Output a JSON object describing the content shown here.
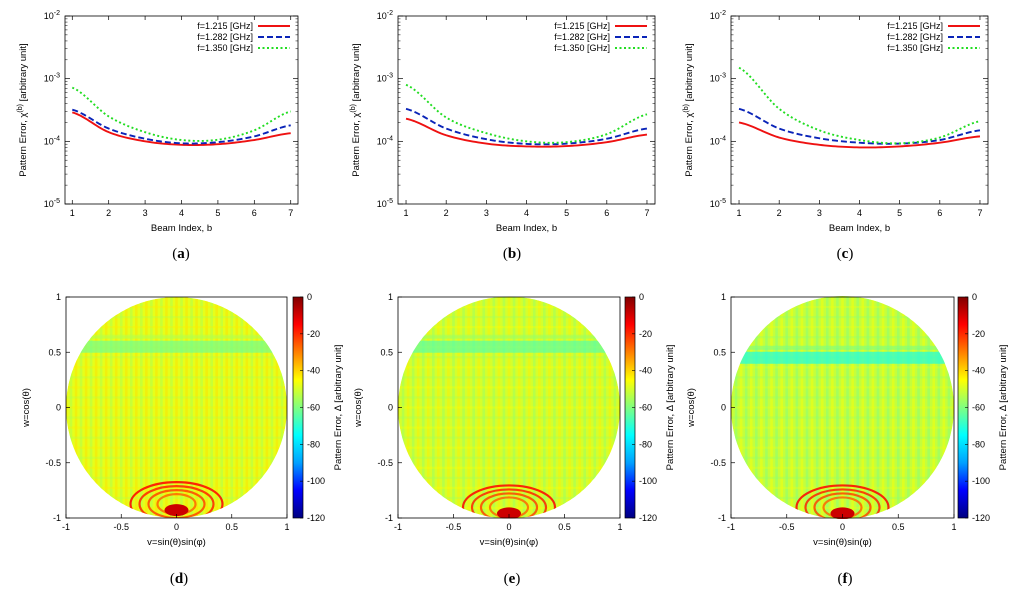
{
  "chart_data": [
    {
      "panel": "a",
      "caption": {
        "open": "(",
        "letter": "a",
        "close": ")"
      },
      "type": "line",
      "xlabel": "Beam Index, b",
      "ylabel_text": "Pattern Error, χ",
      "ylabel_sup": "(b)",
      "ylabel_unit": " [arbitrary unit]",
      "xlim": [
        0.8,
        7.2
      ],
      "ylim": [
        1e-05,
        0.01
      ],
      "yscale": "log",
      "xticks": [
        "1",
        "2",
        "3",
        "4",
        "5",
        "6",
        "7"
      ],
      "yticks": [
        {
          "base": "10",
          "exp": "-5"
        },
        {
          "base": "10",
          "exp": "-4"
        },
        {
          "base": "10",
          "exp": "-3"
        },
        {
          "base": "10",
          "exp": "-2"
        }
      ],
      "legend_position": "top-right",
      "x": [
        1,
        2,
        3,
        4,
        5,
        6,
        7
      ],
      "series": [
        {
          "name": "f=1.215 [GHz]",
          "color": "#ee1111",
          "style": "solid",
          "values": [
            0.00029,
            0.00014,
            0.0001,
            8.8e-05,
            9e-05,
            0.000105,
            0.000135
          ]
        },
        {
          "name": "f=1.282 [GHz]",
          "color": "#0a24b8",
          "style": "dashed",
          "values": [
            0.00032,
            0.00016,
            0.00011,
            9.3e-05,
            9.7e-05,
            0.00012,
            0.00018
          ]
        },
        {
          "name": "f=1.350 [GHz]",
          "color": "#22dd22",
          "style": "dotted",
          "values": [
            0.00072,
            0.00025,
            0.00014,
            0.000105,
            0.000106,
            0.00015,
            0.0003
          ]
        }
      ]
    },
    {
      "panel": "b",
      "caption": {
        "open": "(",
        "letter": "b",
        "close": ")"
      },
      "type": "line",
      "xlabel": "Beam Index, b",
      "ylabel_text": "Pattern Error, χ",
      "ylabel_sup": "(b)",
      "ylabel_unit": " [arbitrary unit]",
      "xlim": [
        0.8,
        7.2
      ],
      "ylim": [
        1e-05,
        0.01
      ],
      "yscale": "log",
      "xticks": [
        "1",
        "2",
        "3",
        "4",
        "5",
        "6",
        "7"
      ],
      "yticks": [
        {
          "base": "10",
          "exp": "-5"
        },
        {
          "base": "10",
          "exp": "-4"
        },
        {
          "base": "10",
          "exp": "-3"
        },
        {
          "base": "10",
          "exp": "-2"
        }
      ],
      "legend_position": "top-right",
      "x": [
        1,
        2,
        3,
        4,
        5,
        6,
        7
      ],
      "series": [
        {
          "name": "f=1.215 [GHz]",
          "color": "#ee1111",
          "style": "solid",
          "values": [
            0.00023,
            0.000125,
            9.2e-05,
            8.3e-05,
            8.4e-05,
            9.7e-05,
            0.000128
          ]
        },
        {
          "name": "f=1.282 [GHz]",
          "color": "#0a24b8",
          "style": "dashed",
          "values": [
            0.00033,
            0.00016,
            0.000108,
            9.1e-05,
            9.2e-05,
            0.00011,
            0.00016
          ]
        },
        {
          "name": "f=1.350 [GHz]",
          "color": "#22dd22",
          "style": "dotted",
          "values": [
            0.0008,
            0.00024,
            0.000135,
            0.0001,
            9.7e-05,
            0.00013,
            0.00027
          ]
        }
      ]
    },
    {
      "panel": "c",
      "caption": {
        "open": "(",
        "letter": "c",
        "close": ")"
      },
      "type": "line",
      "xlabel": "Beam Index, b",
      "ylabel_text": "Pattern Error, χ",
      "ylabel_sup": "(b)",
      "ylabel_unit": " [arbitrary unit]",
      "xlim": [
        0.8,
        7.2
      ],
      "ylim": [
        1e-05,
        0.01
      ],
      "yscale": "log",
      "xticks": [
        "1",
        "2",
        "3",
        "4",
        "5",
        "6",
        "7"
      ],
      "yticks": [
        {
          "base": "10",
          "exp": "-5"
        },
        {
          "base": "10",
          "exp": "-4"
        },
        {
          "base": "10",
          "exp": "-3"
        },
        {
          "base": "10",
          "exp": "-2"
        }
      ],
      "legend_position": "top-right",
      "x": [
        1,
        2,
        3,
        4,
        5,
        6,
        7
      ],
      "series": [
        {
          "name": "f=1.215 [GHz]",
          "color": "#ee1111",
          "style": "solid",
          "values": [
            0.0002,
            0.000115,
            8.8e-05,
            8e-05,
            8.3e-05,
            9.5e-05,
            0.00012
          ]
        },
        {
          "name": "f=1.282 [GHz]",
          "color": "#0a24b8",
          "style": "dashed",
          "values": [
            0.00033,
            0.00016,
            0.000112,
            9.5e-05,
            9.2e-05,
            0.000105,
            0.00015
          ]
        },
        {
          "name": "f=1.350 [GHz]",
          "color": "#22dd22",
          "style": "dotted",
          "values": [
            0.0015,
            0.00033,
            0.00015,
            0.000105,
            9.3e-05,
            0.000115,
            0.00021
          ]
        }
      ]
    },
    {
      "panel": "d",
      "caption": {
        "open": "(",
        "letter": "d",
        "close": ")"
      },
      "type": "heatmap",
      "xlabel": "v=sin(θ)sin(φ)",
      "ylabel": "w=cos(θ)",
      "colorbar_label": "Pattern Error, Δ  [arbitrary unit]",
      "xlim": [
        -1,
        1
      ],
      "ylim": [
        -1,
        1
      ],
      "xticks": [
        "-1",
        "-0.5",
        "0",
        "0.5",
        "1"
      ],
      "yticks": [
        "-1",
        "-0.5",
        "0",
        "0.5",
        "1"
      ],
      "colorbar_range": [
        -120,
        0
      ],
      "colorbar_ticks": [
        "0",
        "-20",
        "-40",
        "-60",
        "-80",
        "-100",
        "-120"
      ],
      "colormap": [
        "#000080",
        "#0000ff",
        "#00a0ff",
        "#00ffff",
        "#80ff80",
        "#ffff00",
        "#ff8000",
        "#ff0000",
        "#800000"
      ],
      "background_level": -48,
      "band_level": -62,
      "band_center_w": 0.55,
      "hotspot_level": -15,
      "hotspot_center_w": -0.82
    },
    {
      "panel": "e",
      "caption": {
        "open": "(",
        "letter": "e",
        "close": ")"
      },
      "type": "heatmap",
      "xlabel": "v=sin(θ)sin(φ)",
      "ylabel": "w=cos(θ)",
      "colorbar_label": "Pattern Error, Δ  [arbitrary unit]",
      "xlim": [
        -1,
        1
      ],
      "ylim": [
        -1,
        1
      ],
      "xticks": [
        "-1",
        "-0.5",
        "0",
        "0.5",
        "1"
      ],
      "yticks": [
        "-1",
        "-0.5",
        "0",
        "0.5",
        "1"
      ],
      "colorbar_range": [
        -120,
        0
      ],
      "colorbar_ticks": [
        "0",
        "-20",
        "-40",
        "-60",
        "-80",
        "-100",
        "-120"
      ],
      "colormap": [
        "#000080",
        "#0000ff",
        "#00a0ff",
        "#00ffff",
        "#80ff80",
        "#ffff00",
        "#ff8000",
        "#ff0000",
        "#800000"
      ],
      "background_level": -50,
      "band_level": -65,
      "band_center_w": 0.55,
      "hotspot_level": -15,
      "hotspot_center_w": -0.85
    },
    {
      "panel": "f",
      "caption": {
        "open": "(",
        "letter": "f",
        "close": ")"
      },
      "type": "heatmap",
      "xlabel": "v=sin(θ)sin(φ)",
      "ylabel": "w=cos(θ)",
      "colorbar_label": "Pattern Error, Δ  [arbitrary unit]",
      "xlim": [
        -1,
        1
      ],
      "ylim": [
        -1,
        1
      ],
      "xticks": [
        "-1",
        "-0.5",
        "0",
        "0.5",
        "1"
      ],
      "yticks": [
        "-1",
        "-0.5",
        "0",
        "0.5",
        "1"
      ],
      "colorbar_range": [
        -120,
        0
      ],
      "colorbar_ticks": [
        "0",
        "-20",
        "-40",
        "-60",
        "-80",
        "-100",
        "-120"
      ],
      "colormap": [
        "#000080",
        "#0000ff",
        "#00a0ff",
        "#00ffff",
        "#80ff80",
        "#ffff00",
        "#ff8000",
        "#ff0000",
        "#800000"
      ],
      "background_level": -52,
      "band_level": -72,
      "band_center_w": 0.45,
      "hotspot_level": -15,
      "hotspot_center_w": -0.85
    }
  ]
}
